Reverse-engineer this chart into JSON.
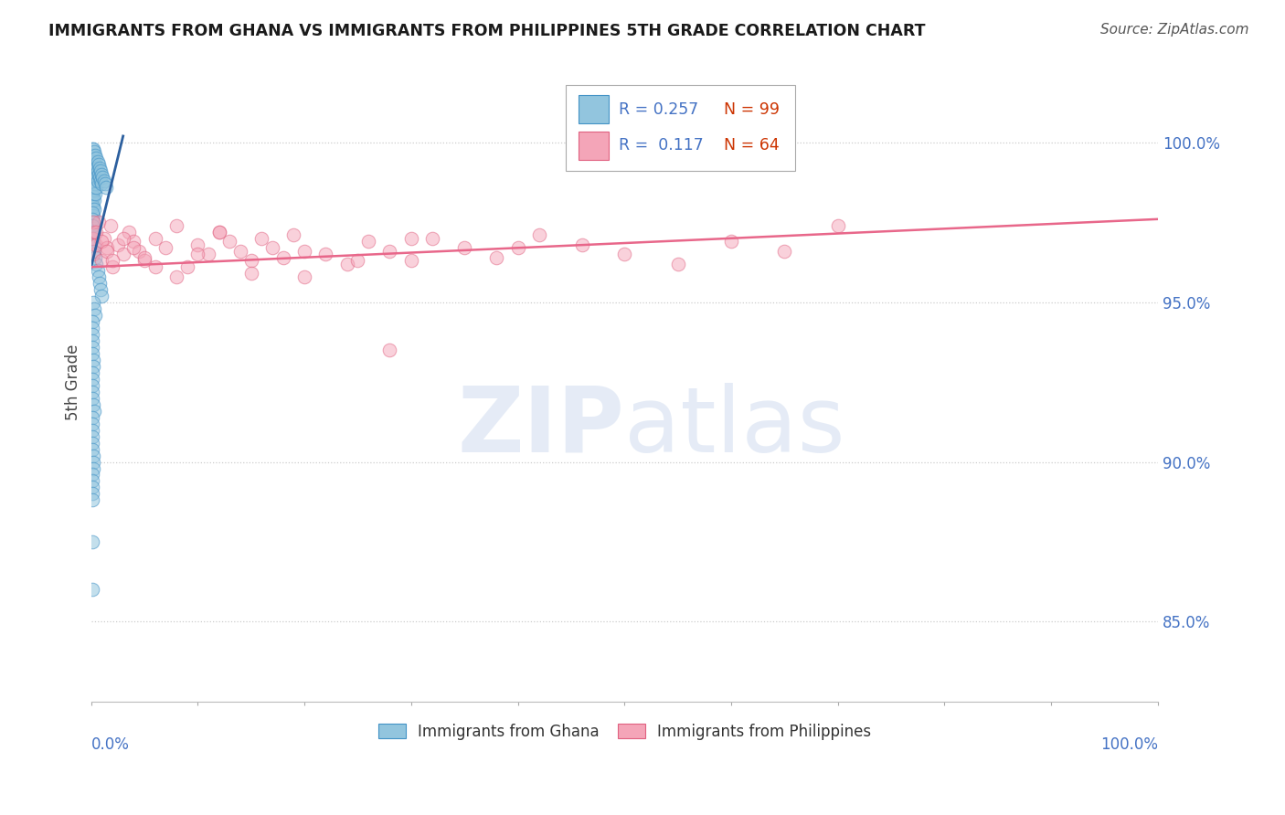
{
  "title": "IMMIGRANTS FROM GHANA VS IMMIGRANTS FROM PHILIPPINES 5TH GRADE CORRELATION CHART",
  "source": "Source: ZipAtlas.com",
  "ylabel": "5th Grade",
  "ytick_labels": [
    "100.0%",
    "95.0%",
    "90.0%",
    "85.0%"
  ],
  "ytick_values": [
    1.0,
    0.95,
    0.9,
    0.85
  ],
  "blue_color": "#92c5de",
  "pink_color": "#f4a5b8",
  "blue_line_color": "#2c5f9e",
  "pink_line_color": "#e8678a",
  "blue_edge_color": "#4292c6",
  "pink_edge_color": "#e06080",
  "ghana_x": [
    0.001,
    0.001,
    0.001,
    0.001,
    0.001,
    0.001,
    0.001,
    0.001,
    0.001,
    0.001,
    0.002,
    0.002,
    0.002,
    0.002,
    0.002,
    0.002,
    0.002,
    0.002,
    0.002,
    0.003,
    0.003,
    0.003,
    0.003,
    0.003,
    0.003,
    0.003,
    0.004,
    0.004,
    0.004,
    0.004,
    0.004,
    0.005,
    0.005,
    0.005,
    0.005,
    0.006,
    0.006,
    0.006,
    0.007,
    0.007,
    0.008,
    0.008,
    0.009,
    0.009,
    0.01,
    0.01,
    0.011,
    0.012,
    0.013,
    0.014,
    0.001,
    0.001,
    0.001,
    0.002,
    0.002,
    0.003,
    0.003,
    0.004,
    0.005,
    0.006,
    0.007,
    0.008,
    0.009,
    0.01,
    0.002,
    0.003,
    0.004,
    0.001,
    0.001,
    0.001,
    0.001,
    0.001,
    0.001,
    0.002,
    0.002,
    0.001,
    0.001,
    0.001,
    0.001,
    0.001,
    0.002,
    0.003,
    0.001,
    0.001,
    0.001,
    0.001,
    0.001,
    0.001,
    0.002,
    0.002,
    0.002,
    0.001,
    0.001,
    0.001,
    0.001,
    0.001,
    0.001,
    0.001
  ],
  "ghana_y": [
    0.998,
    0.996,
    0.994,
    0.992,
    0.99,
    0.988,
    0.986,
    0.984,
    0.982,
    0.98,
    0.998,
    0.995,
    0.992,
    0.989,
    0.986,
    0.983,
    0.98,
    0.977,
    0.974,
    0.997,
    0.994,
    0.991,
    0.988,
    0.985,
    0.982,
    0.979,
    0.996,
    0.993,
    0.99,
    0.987,
    0.984,
    0.995,
    0.992,
    0.989,
    0.986,
    0.994,
    0.991,
    0.988,
    0.993,
    0.99,
    0.992,
    0.989,
    0.991,
    0.988,
    0.99,
    0.987,
    0.989,
    0.988,
    0.987,
    0.986,
    0.978,
    0.976,
    0.974,
    0.972,
    0.97,
    0.968,
    0.966,
    0.964,
    0.962,
    0.96,
    0.958,
    0.956,
    0.954,
    0.952,
    0.95,
    0.948,
    0.946,
    0.944,
    0.942,
    0.94,
    0.938,
    0.936,
    0.934,
    0.932,
    0.93,
    0.928,
    0.926,
    0.924,
    0.922,
    0.92,
    0.918,
    0.916,
    0.914,
    0.912,
    0.91,
    0.908,
    0.906,
    0.904,
    0.902,
    0.9,
    0.898,
    0.896,
    0.894,
    0.892,
    0.89,
    0.888,
    0.875,
    0.86
  ],
  "phil_x": [
    0.001,
    0.002,
    0.003,
    0.005,
    0.007,
    0.01,
    0.012,
    0.015,
    0.018,
    0.02,
    0.025,
    0.03,
    0.035,
    0.04,
    0.045,
    0.05,
    0.06,
    0.07,
    0.08,
    0.09,
    0.1,
    0.11,
    0.12,
    0.13,
    0.14,
    0.15,
    0.16,
    0.17,
    0.18,
    0.19,
    0.2,
    0.22,
    0.24,
    0.26,
    0.28,
    0.3,
    0.32,
    0.35,
    0.38,
    0.42,
    0.46,
    0.5,
    0.55,
    0.6,
    0.65,
    0.7,
    0.002,
    0.005,
    0.01,
    0.015,
    0.02,
    0.03,
    0.04,
    0.05,
    0.06,
    0.08,
    0.1,
    0.12,
    0.15,
    0.2,
    0.25,
    0.3,
    0.4,
    0.28
  ],
  "phil_y": [
    0.97,
    0.965,
    0.972,
    0.968,
    0.975,
    0.963,
    0.97,
    0.967,
    0.974,
    0.961,
    0.968,
    0.965,
    0.972,
    0.969,
    0.966,
    0.963,
    0.97,
    0.967,
    0.974,
    0.961,
    0.968,
    0.965,
    0.972,
    0.969,
    0.966,
    0.963,
    0.97,
    0.967,
    0.964,
    0.971,
    0.958,
    0.965,
    0.962,
    0.969,
    0.966,
    0.963,
    0.97,
    0.967,
    0.964,
    0.971,
    0.968,
    0.965,
    0.962,
    0.969,
    0.966,
    0.974,
    0.975,
    0.972,
    0.969,
    0.966,
    0.963,
    0.97,
    0.967,
    0.964,
    0.961,
    0.958,
    0.965,
    0.972,
    0.959,
    0.966,
    0.963,
    0.97,
    0.967,
    0.935
  ],
  "ghana_trend_x": [
    0.0,
    0.03
  ],
  "ghana_trend_y": [
    0.961,
    1.002
  ],
  "phil_trend_x": [
    0.0,
    1.0
  ],
  "phil_trend_y": [
    0.961,
    0.976
  ],
  "xlim": [
    0.0,
    1.0
  ],
  "ylim": [
    0.825,
    1.025
  ],
  "background_color": "#ffffff",
  "grid_color": "#cccccc",
  "title_color": "#1a1a1a",
  "tick_label_color": "#4472c4",
  "legend_r_color": "#4472c4",
  "legend_n_color": "#cc3300"
}
